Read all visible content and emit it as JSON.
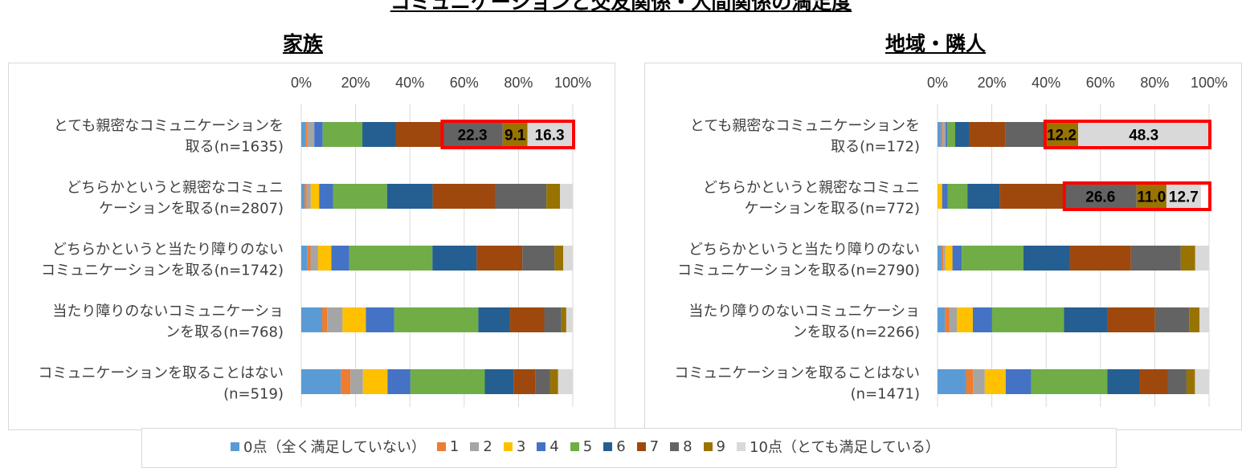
{
  "title": "コミュニケーションと交友関係・人間関係の満足度",
  "colors": [
    "#5b9bd5",
    "#ed7d31",
    "#a5a5a5",
    "#ffc000",
    "#4472c4",
    "#70ad47",
    "#255e91",
    "#9e480e",
    "#636363",
    "#997300",
    "#d9d9d9"
  ],
  "highlight_color": "#ff0000",
  "legend": [
    "0点（全く満足していない）",
    "1",
    "2",
    "3",
    "4",
    "5",
    "6",
    "7",
    "8",
    "9",
    "10点（とても満足している）"
  ],
  "chart_data": [
    {
      "type": "bar",
      "orientation": "horizontal-stacked-100",
      "title": "家族",
      "xlim": [
        0,
        100
      ],
      "ticks": [
        "0%",
        "20%",
        "40%",
        "60%",
        "80%",
        "100%"
      ],
      "categories": [
        [
          "とても親密なコミュニケーションを",
          "取る(n=1635)"
        ],
        [
          "どちらかというと親密なコミュニ",
          "ケーションを取る(n=2807)"
        ],
        [
          "どちらかというと当たり障りのない",
          "コミュニケーションを取る(n=1742)"
        ],
        [
          "当たり障りのないコミュニケーショ",
          "ンを取る(n=768)"
        ],
        [
          "コミュニケーションを取ることはない",
          "(n=519)"
        ]
      ],
      "rows": [
        [
          1.5,
          0.8,
          2.5,
          0,
          3.1,
          14.6,
          12.4,
          17.0,
          22.3,
          9.1,
          16.3
        ],
        [
          1.2,
          0.8,
          1.5,
          3.1,
          5.1,
          19.9,
          16.8,
          22.9,
          19.0,
          5.0,
          4.7
        ],
        [
          2.3,
          1.1,
          2.8,
          4.9,
          6.6,
          30.6,
          16.3,
          16.8,
          11.9,
          3.2,
          3.5
        ],
        [
          7.7,
          1.8,
          5.7,
          8.6,
          10.4,
          31.0,
          11.7,
          12.6,
          6.3,
          1.8,
          2.4
        ],
        [
          14.6,
          3.5,
          4.6,
          9.1,
          8.4,
          27.4,
          10.6,
          8.1,
          5.4,
          2.9,
          5.4
        ]
      ],
      "highlights": [
        {
          "row": 0,
          "labels": [
            "22.3",
            "9.1",
            "16.3"
          ]
        }
      ]
    },
    {
      "type": "bar",
      "orientation": "horizontal-stacked-100",
      "title": "地域・隣人",
      "xlim": [
        0,
        100
      ],
      "ticks": [
        "0%",
        "20%",
        "40%",
        "60%",
        "80%",
        "100%"
      ],
      "categories": [
        [
          "とても親密なコミュニケーションを",
          "取る(n=172)"
        ],
        [
          "どちらかというと親密なコミュニ",
          "ケーションを取る(n=772)"
        ],
        [
          "どちらかというと当たり障りのない",
          "コミュニケーションを取る(n=2790)"
        ],
        [
          "当たり障りのないコミュニケーショ",
          "ンを取る(n=2266)"
        ],
        [
          "コミュニケーションを取ることはない",
          "(n=1471)"
        ]
      ],
      "rows": [
        [
          1.2,
          0.6,
          1.2,
          0,
          0.6,
          2.9,
          5.2,
          13.4,
          14.5,
          12.2,
          48.3
        ],
        [
          0,
          0,
          0,
          1.7,
          2.1,
          7.2,
          11.9,
          23.8,
          26.6,
          11.0,
          12.7
        ],
        [
          1.6,
          0.5,
          0.8,
          2.6,
          3.4,
          22.7,
          17.2,
          22.4,
          18.4,
          5.3,
          5.1
        ],
        [
          2.7,
          1.6,
          2.8,
          5.9,
          7.1,
          26.5,
          16.1,
          17.4,
          12.6,
          3.8,
          3.5
        ],
        [
          10.5,
          2.6,
          4.3,
          7.7,
          9.4,
          28.0,
          11.9,
          10.5,
          6.8,
          3.1,
          5.2
        ]
      ],
      "highlights": [
        {
          "row": 0,
          "labels": [
            "12.2",
            "48.3"
          ]
        },
        {
          "row": 1,
          "labels": [
            "26.6",
            "11.0",
            "12.7"
          ]
        }
      ]
    }
  ]
}
